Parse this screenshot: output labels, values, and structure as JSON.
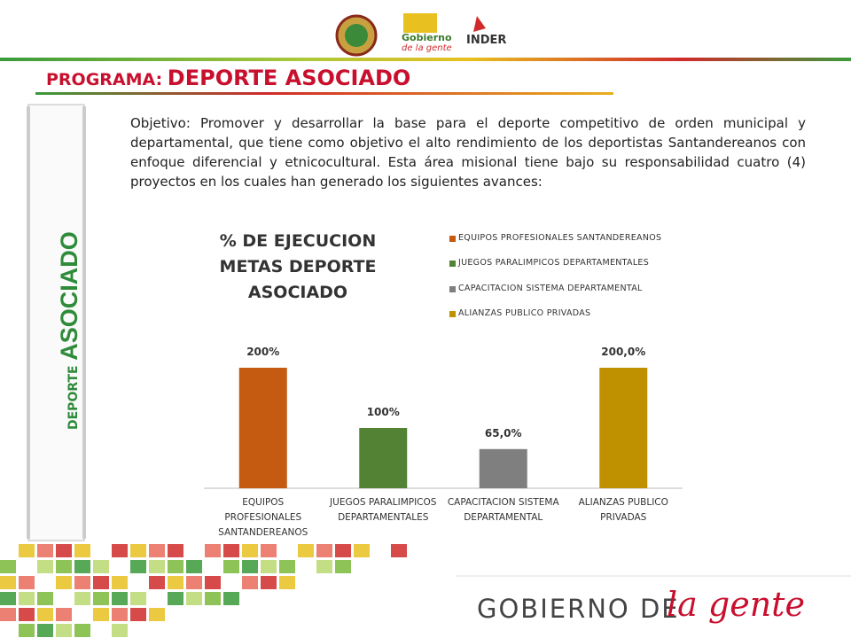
{
  "header": {
    "logos": [
      "Gobierno",
      "de la gente",
      "INDER"
    ],
    "program_label": "PROGRAMA:",
    "program_name": "DEPORTE ASOCIADO"
  },
  "sidebar": {
    "small": "DEPORTE",
    "large": "ASOCIADO"
  },
  "objective": "Objetivo: Promover y desarrollar la base para el deporte competitivo de orden municipal y departamental, que tiene como objetivo el alto rendimiento de los deportistas Santandereanos con enfoque diferencial y etnicocultural. Esta área misional tiene bajo su responsabilidad cuatro (4) proyectos en los cuales han generado los siguientes avances:",
  "chart_data": {
    "type": "bar",
    "title": "% DE EJECUCION METAS DEPORTE ASOCIADO",
    "categories": [
      "EQUIPOS PROFESIONALES SANTANDEREANOS",
      "JUEGOS PARALIMPICOS DEPARTAMENTALES",
      "CAPACITACION SISTEMA DEPARTAMENTAL",
      "ALIANZAS PUBLICO PRIVADAS"
    ],
    "values": [
      200,
      100,
      65,
      200
    ],
    "value_labels": [
      "200%",
      "100%",
      "65,0%",
      "200,0%"
    ],
    "colors": [
      "#c55a11",
      "#548235",
      "#7f7f7f",
      "#bf9000"
    ],
    "legend": true
  },
  "footer": {
    "brand": "GOBIERNO DE",
    "script": "la gente"
  }
}
